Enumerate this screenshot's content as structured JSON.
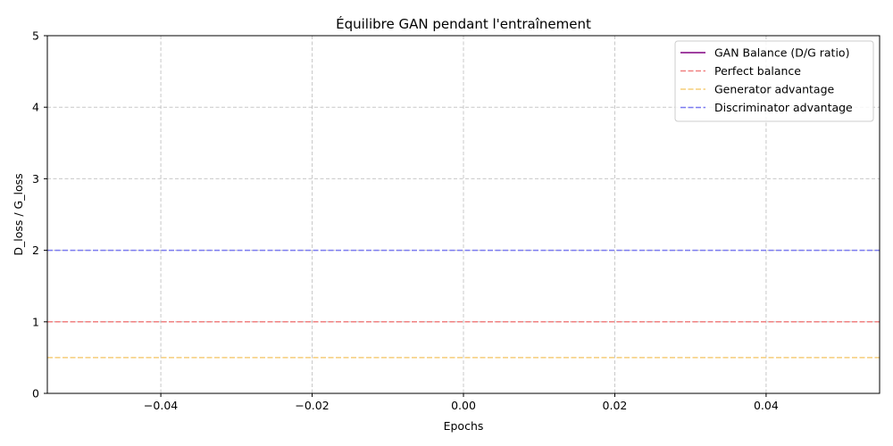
{
  "chart_data": {
    "type": "line",
    "title": "Équilibre GAN pendant l'entraînement",
    "xlabel": "Epochs",
    "ylabel": "D_loss / G_loss",
    "xlim": [
      -0.055,
      0.055
    ],
    "ylim": [
      0,
      5
    ],
    "xticks": [
      -0.04,
      -0.02,
      0.0,
      0.02,
      0.04
    ],
    "xtick_labels": [
      "−0.04",
      "−0.02",
      "0.00",
      "0.02",
      "0.04"
    ],
    "yticks": [
      0,
      1,
      2,
      3,
      4,
      5
    ],
    "ytick_labels": [
      "0",
      "1",
      "2",
      "3",
      "4",
      "5"
    ],
    "grid": true,
    "legend_position": "top-right",
    "series": [
      {
        "name": "GAN Balance (D/G ratio)",
        "style": "solid",
        "color": "#800080",
        "x": [],
        "y": []
      },
      {
        "name": "Perfect balance",
        "style": "dashed",
        "color": "#f08080",
        "hline": 1.0
      },
      {
        "name": "Generator advantage",
        "style": "dashed",
        "color": "#f5cd79",
        "hline": 0.5
      },
      {
        "name": "Discriminator advantage",
        "style": "dashed",
        "color": "#7b7bf0",
        "hline": 2.0
      }
    ]
  }
}
